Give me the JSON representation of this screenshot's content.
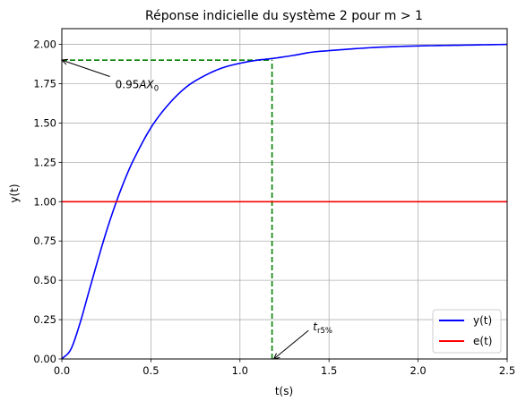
{
  "chart_data": {
    "type": "line",
    "title": "Réponse indicielle du système 2 pour m > 1",
    "xlabel": "t(s)",
    "ylabel": "y(t)",
    "xlim": [
      0,
      2.5
    ],
    "ylim": [
      0,
      2.1
    ],
    "grid": true,
    "xticks": [
      0.0,
      0.5,
      1.0,
      1.5,
      2.0,
      2.5
    ],
    "xtick_labels": [
      "0.0",
      "0.5",
      "1.0",
      "1.5",
      "2.0",
      "2.5"
    ],
    "yticks": [
      0.0,
      0.25,
      0.5,
      0.75,
      1.0,
      1.25,
      1.5,
      1.75,
      2.0
    ],
    "ytick_labels": [
      "0.00",
      "0.25",
      "0.50",
      "0.75",
      "1.00",
      "1.25",
      "1.50",
      "1.75",
      "2.00"
    ],
    "legend_position": "lower right",
    "series": [
      {
        "name": "y(t)",
        "color": "#0000ff",
        "x": [
          0,
          0.05,
          0.1,
          0.15,
          0.2,
          0.25,
          0.3,
          0.35,
          0.4,
          0.5,
          0.6,
          0.7,
          0.8,
          0.9,
          1.0,
          1.1,
          1.18,
          1.3,
          1.4,
          1.5,
          1.75,
          2.0,
          2.25,
          2.5
        ],
        "y": [
          0.0,
          0.06,
          0.22,
          0.42,
          0.62,
          0.81,
          0.98,
          1.13,
          1.26,
          1.47,
          1.62,
          1.73,
          1.8,
          1.85,
          1.88,
          1.9,
          1.91,
          1.93,
          1.95,
          1.96,
          1.98,
          1.99,
          1.995,
          2.0
        ]
      },
      {
        "name": "e(t)",
        "color": "#ff0000",
        "x": [
          0,
          2.5
        ],
        "y": [
          1.0,
          1.0
        ]
      }
    ],
    "reference_lines": [
      {
        "color": "#008000",
        "style": "dashed",
        "x": [
          0,
          1.18
        ],
        "y": [
          1.9,
          1.9
        ]
      },
      {
        "color": "#008000",
        "style": "dashed",
        "x": [
          1.18,
          1.18
        ],
        "y": [
          0,
          1.9
        ]
      }
    ],
    "annotations": [
      {
        "text_main": "0.95",
        "text_var": "AX",
        "text_sub": "0",
        "arrow_x": 0.0,
        "arrow_y": 1.9,
        "text_x": 0.3,
        "text_y": 1.75
      },
      {
        "text_main": "t",
        "text_sub": "r5%",
        "arrow_x": 1.19,
        "arrow_y": 0.0,
        "text_x": 1.41,
        "text_y": 0.21
      }
    ]
  }
}
